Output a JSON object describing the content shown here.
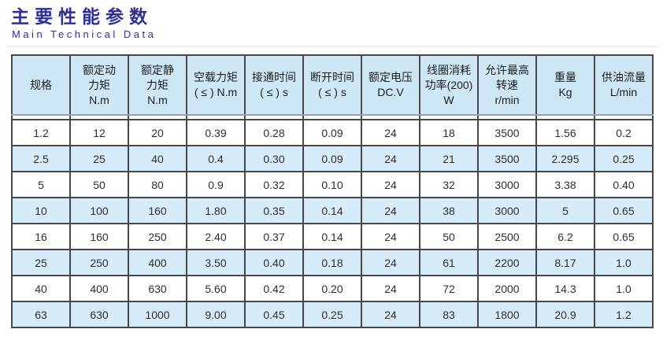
{
  "header": {
    "title": "主要性能参数",
    "subtitle": "Main Technical Data"
  },
  "colors": {
    "title_blue": "#2e3192",
    "table_header_bg": "#cde7f7",
    "row_stripe_bg": "#d6ecfa",
    "grid_border": "#474747",
    "header_separator": "#94a1a9"
  },
  "chart_data": {
    "type": "table",
    "title": "主要性能参数 / Main Technical Data",
    "columns": [
      "规格",
      "额定动\n力矩\nN.m",
      "额定静\n力矩\nN.m",
      "空载力矩\n( ≤ ) N.m",
      "接通时间\n( ≤ ) s",
      "断开时间\n( ≤ ) s",
      "额定电压\nDC.V",
      "线圈消耗\n功率(200)\nW",
      "允许最高\n转速\nr/min",
      "重量\nKg",
      "供油流量\nL/min"
    ],
    "rows": [
      [
        "1.2",
        "12",
        "20",
        "0.39",
        "0.28",
        "0.09",
        "24",
        "18",
        "3500",
        "1.56",
        "0.2"
      ],
      [
        "2.5",
        "25",
        "40",
        "0.4",
        "0.30",
        "0.09",
        "24",
        "21",
        "3500",
        "2.295",
        "0.25"
      ],
      [
        "5",
        "50",
        "80",
        "0.9",
        "0.32",
        "0.10",
        "24",
        "32",
        "3000",
        "3.38",
        "0.40"
      ],
      [
        "10",
        "100",
        "160",
        "1.80",
        "0.35",
        "0.14",
        "24",
        "38",
        "3000",
        "5",
        "0.65"
      ],
      [
        "16",
        "160",
        "250",
        "2.40",
        "0.37",
        "0.14",
        "24",
        "50",
        "2500",
        "6.2",
        "0.65"
      ],
      [
        "25",
        "250",
        "400",
        "3.50",
        "0.40",
        "0.18",
        "24",
        "61",
        "2200",
        "8.17",
        "1.0"
      ],
      [
        "40",
        "400",
        "630",
        "5.60",
        "0.42",
        "0.20",
        "24",
        "72",
        "2000",
        "14.3",
        "1.0"
      ],
      [
        "63",
        "630",
        "1000",
        "9.00",
        "0.45",
        "0.25",
        "24",
        "83",
        "1800",
        "20.9",
        "1.2"
      ]
    ]
  }
}
